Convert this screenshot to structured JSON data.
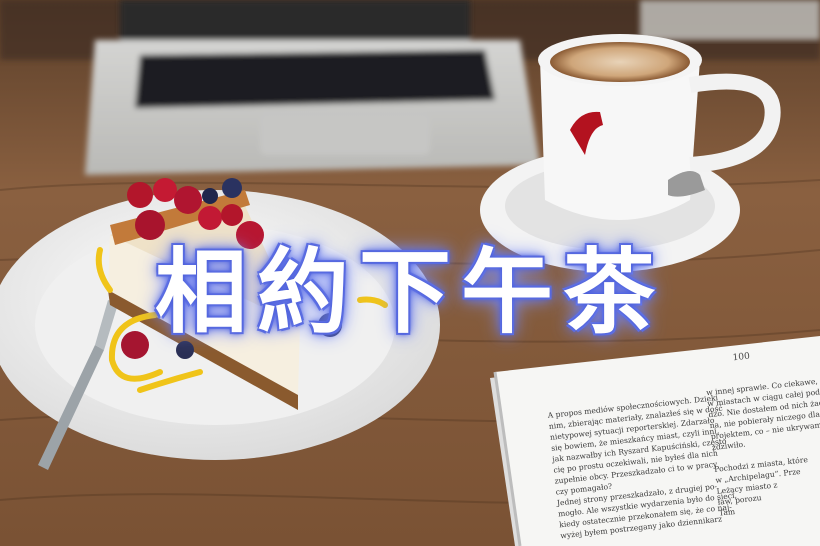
{
  "headline": "相約下午茶",
  "book": {
    "page_number": "100",
    "left_column": [
      "A propos mediów społecznościowych. Dzieki",
      "nim, zbierając materiały, znalazłeś się w dość",
      "nietypowej sytuacji reporterskiej. Zdarzało",
      "się bowiem, że mieszkańcy miast, czyli inni,",
      "jak nazwałby ich Ryszard Kapuściński, często",
      "cię po prostu oczekiwali, nie byłeś dla nich",
      "zupełnie obcy. Przeszkadzało ci to w pracy",
      "czy pomagało?",
      "   Jednej strony przeszkadzało, z drugiej po-",
      "mogło. Ale wszystkie wydarzenia było do sieci,",
      "kiedy ostatecznie przekonałem się, że co naj-",
      "wyżej byłem postrzegany jako dziennikarz"
    ],
    "right_column": [
      "w innej sprawie. Co ciekawe, z moje",
      "w miastach w ciągu całej podróży tak",
      "dzo. Nie dostałem od nich żadnych",
      "na, nie pobierały niczego dla siebie",
      "projektem, co – nie ukrywam –",
      "zdziwiło.",
      "",
      "Pochodzi z miasta, które",
      "w „Archipelagu”. Prze",
      "Leżący miasto z",
      "ław, porozu",
      "Tam"
    ]
  }
}
